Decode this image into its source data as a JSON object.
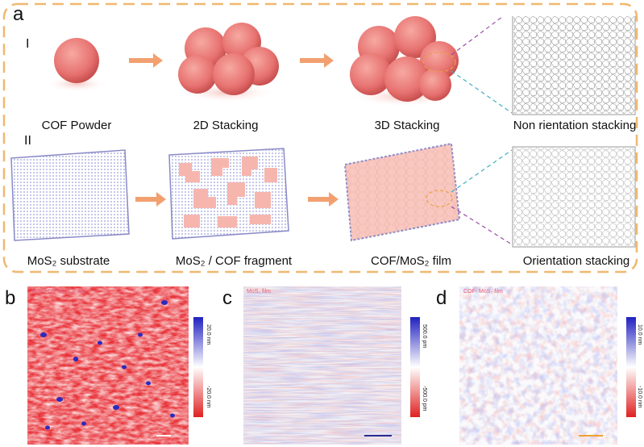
{
  "panel_a": {
    "letter": "a",
    "row_labels": [
      "I",
      "II"
    ],
    "row1_captions": [
      "COF Powder",
      "2D Stacking",
      "3D Stacking",
      "Non rientation stacking"
    ],
    "row2_captions": [
      "MoS₂ substrate",
      "MoS₂ / COF fragment",
      "COF/MoS₂ film",
      "Orientation stacking"
    ]
  },
  "panel_b": {
    "letter": "b",
    "tag": "TAPM-DMTA COF film",
    "scale_max": "20.0 nm",
    "scale_min": "-20.0 nm"
  },
  "panel_c": {
    "letter": "c",
    "tag": "MoS₂ film",
    "scale_max": "500.0 pm",
    "scale_min": "-500.0 pm"
  },
  "panel_d": {
    "letter": "d",
    "tag": "COF- MoS₂ film",
    "scale_max": "10.0 nm",
    "scale_min": "-10.0 nm"
  },
  "colors": {
    "frame": "#f0b870",
    "arrow": "#f2a070",
    "sphere": "#e87070",
    "film": "#f8c8c0",
    "mos2": "#9090c8",
    "scale_high": "#2020c0",
    "scale_low": "#e02020"
  }
}
